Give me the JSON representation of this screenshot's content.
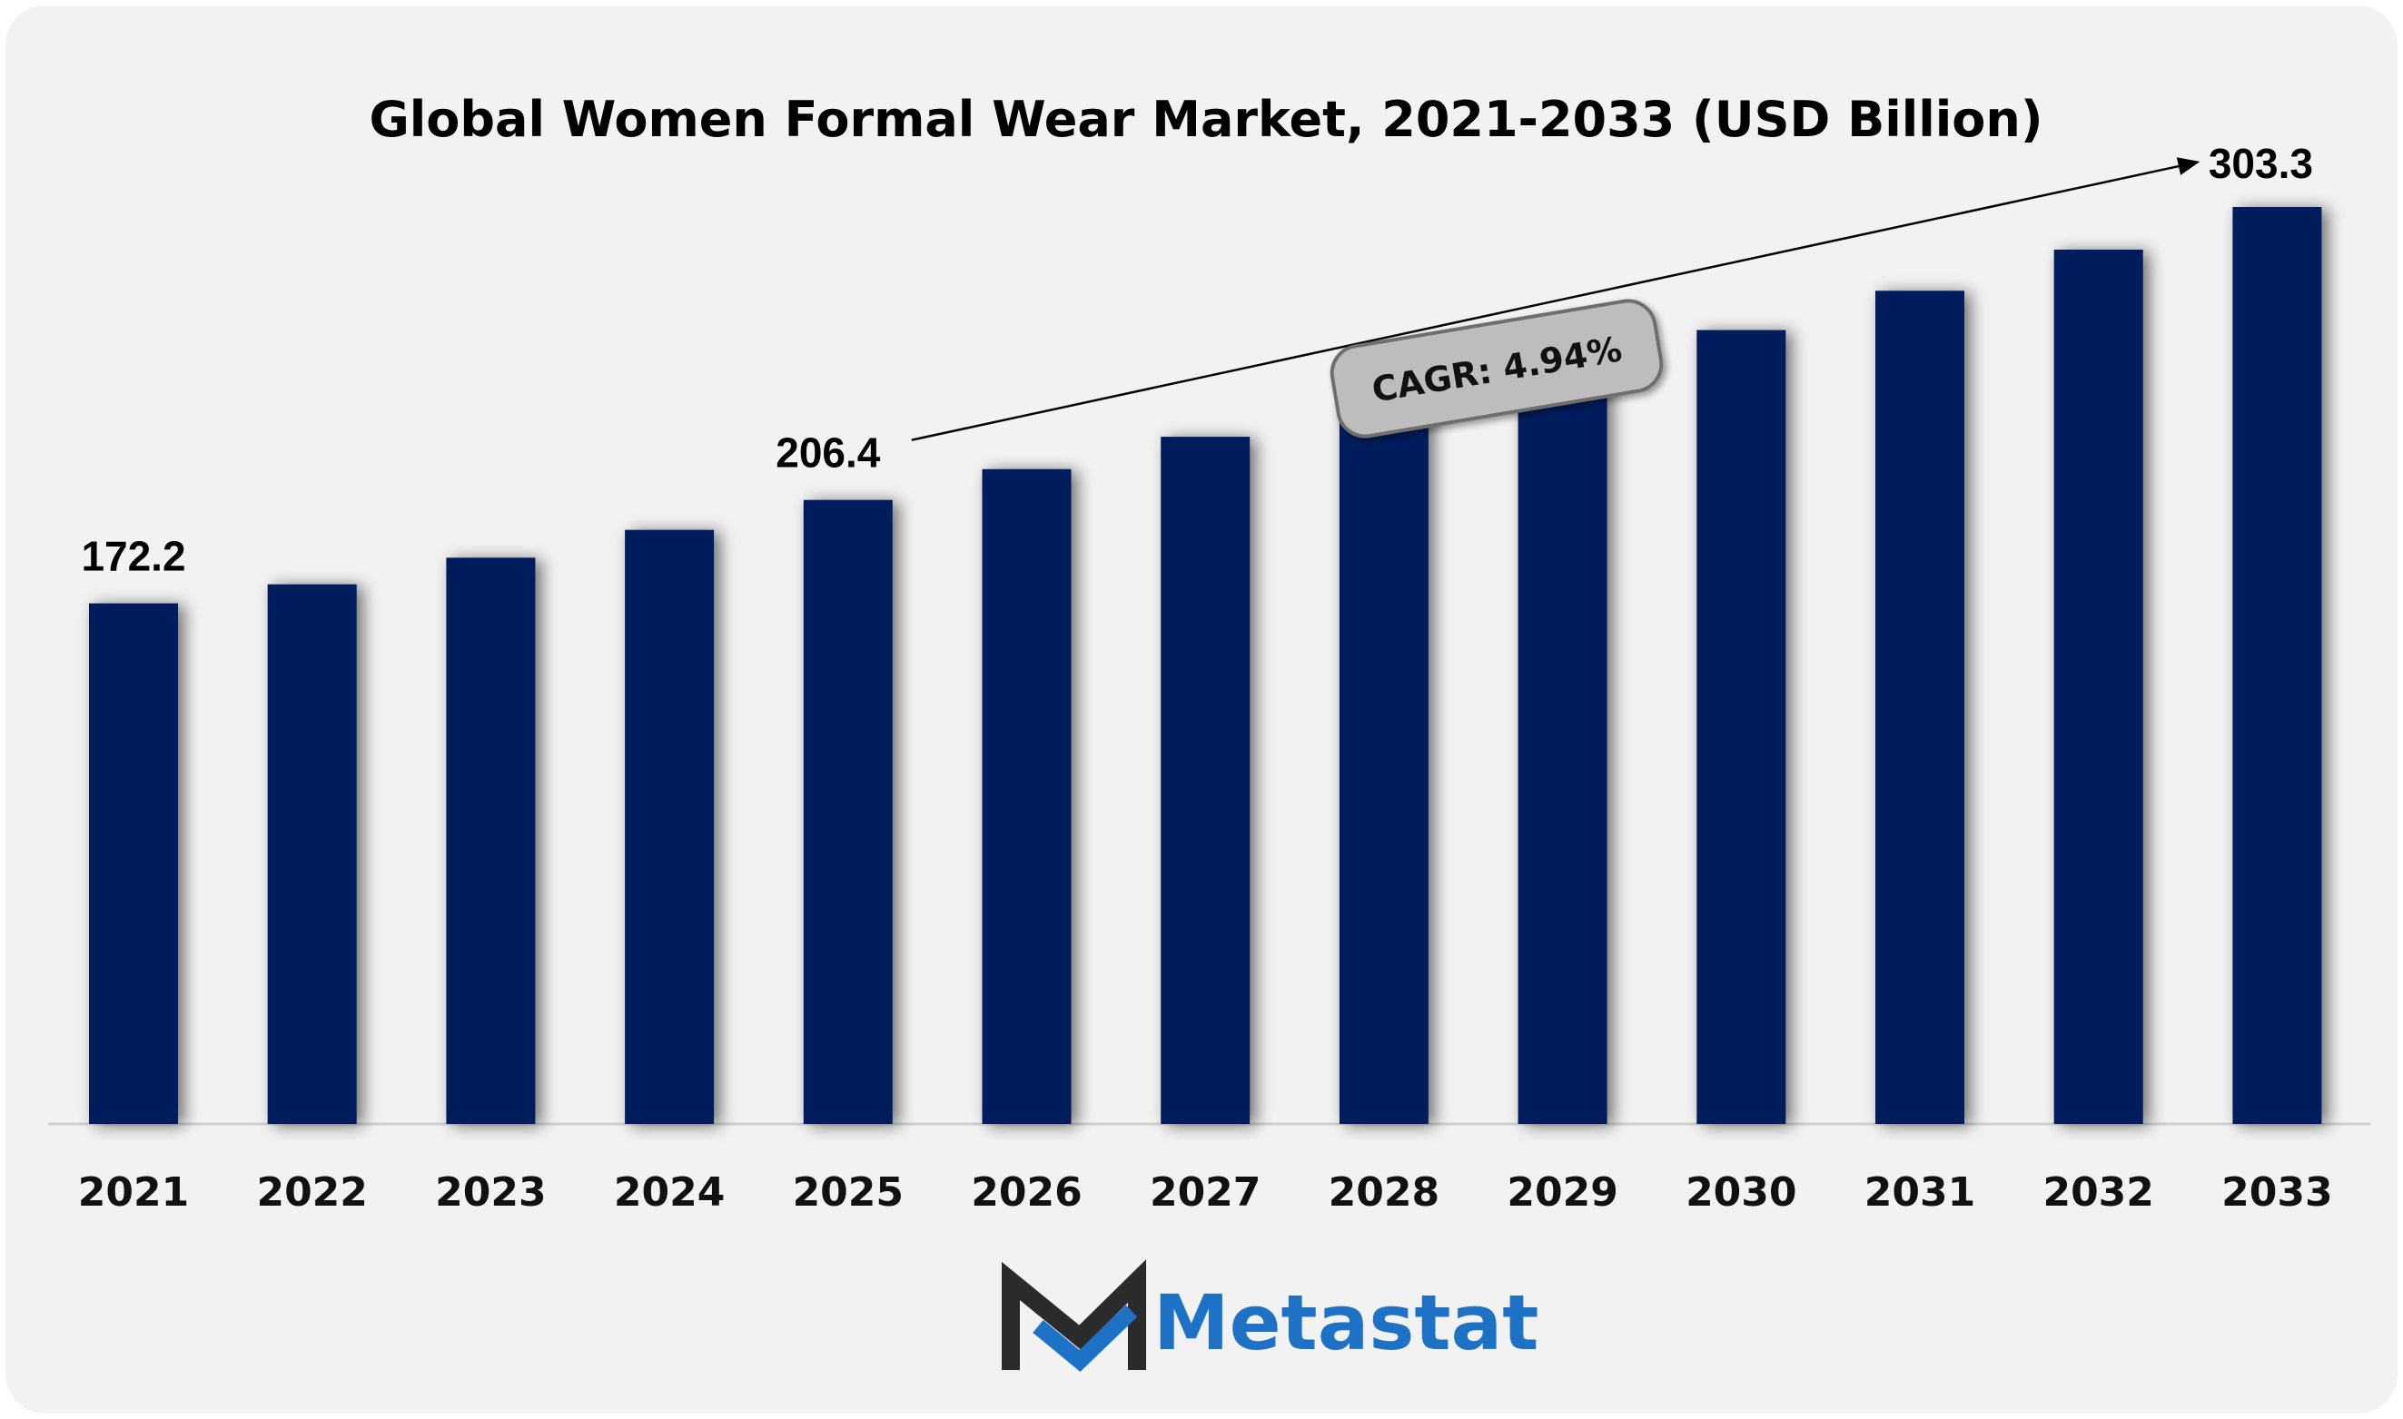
{
  "chart_data": {
    "type": "bar",
    "title": "Global Women Formal Wear Market, 2021-2033 (USD Billion)",
    "categories": [
      "2021",
      "2022",
      "2023",
      "2024",
      "2025",
      "2026",
      "2027",
      "2028",
      "2029",
      "2030",
      "2031",
      "2032",
      "2033"
    ],
    "values": [
      172.2,
      178.5,
      187.3,
      196.5,
      206.4,
      216.6,
      227.3,
      238.5,
      250.3,
      262.6,
      275.6,
      289.2,
      303.3
    ],
    "labeled_points": [
      {
        "category": "2021",
        "label": "172.2"
      },
      {
        "category": "2025",
        "label": "206.4"
      },
      {
        "category": "2033",
        "label": "303.3"
      }
    ],
    "annotation": {
      "text": "CAGR: 4.94%",
      "from": "2025",
      "to": "2033"
    },
    "ylim": [
      0,
      330
    ],
    "grid": false,
    "bar_color": "#041e5b"
  },
  "logo": {
    "text": "Metastat",
    "text_color": "#1d72c5",
    "mark_dark": "#2b2b2b",
    "mark_blue": "#1d72c5"
  }
}
